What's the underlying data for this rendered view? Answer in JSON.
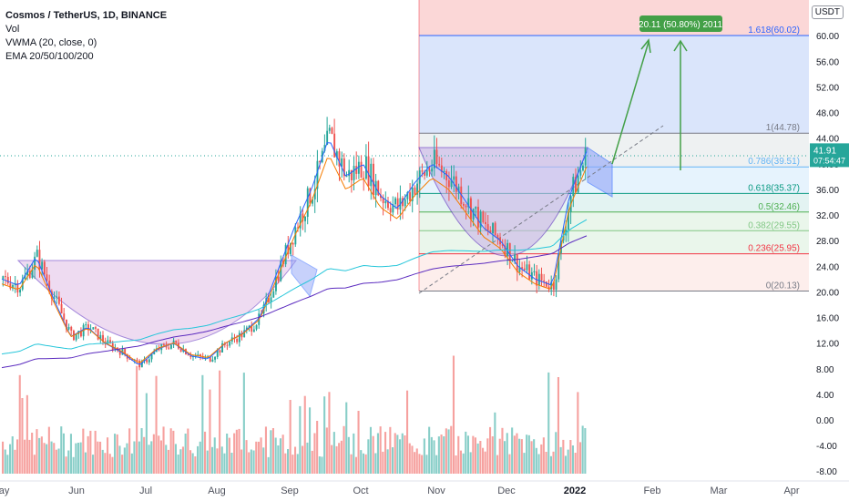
{
  "legend": {
    "title": "Cosmos / TetherUS, 1D, BINANCE",
    "vol": "Vol",
    "vwma": "VWMA (20, close, 0)",
    "ema": "EMA 20/50/100/200"
  },
  "axis_unit": "USDT",
  "price_ticks": [
    "6",
    "60.00",
    "56.00",
    "52.00",
    "48.00",
    "44.00",
    "40.00",
    "36.00",
    "32.00",
    "28.00",
    "24.00",
    "20.00",
    "16.00",
    "12.00",
    "8.00",
    "4.00",
    "0.00",
    "-4.00",
    "-8.00"
  ],
  "months": [
    "May",
    "Jun",
    "Jul",
    "Aug",
    "Sep",
    "Oct",
    "Nov",
    "Dec",
    "2022",
    "Feb",
    "Mar",
    "Apr"
  ],
  "last_price": {
    "value": "41.91",
    "countdown": "07:54:47",
    "color": "#26a69a"
  },
  "projection_label": "20.11 (50.80%) 2011",
  "colors": {
    "up": "#26a69a",
    "down": "#ef5350",
    "ema_blue": "#2962ff",
    "ema_orange": "#f57c00",
    "ema_cyan": "#26c6da",
    "ema_purple": "#5b2bbf",
    "cup_fill": "#e1bee7",
    "target_green": "#43a047"
  },
  "chart_data": {
    "type": "candlestick",
    "title": "Cosmos / TetherUS, 1D, BINANCE",
    "ylim": [
      -9,
      64
    ],
    "x_months": [
      "May",
      "Jun",
      "Jul",
      "Aug",
      "Sep",
      "Oct",
      "Nov",
      "Dec",
      "2022",
      "Feb",
      "Mar",
      "Apr"
    ],
    "close_path": [
      [
        "May",
        22
      ],
      [
        "",
        21
      ],
      [
        "",
        25.5
      ],
      [
        "",
        19
      ],
      [
        "",
        13
      ],
      [
        "Jun",
        14.5
      ],
      [
        "",
        12
      ],
      [
        "",
        10.5
      ],
      [
        "",
        8.5
      ],
      [
        "Jul",
        11
      ],
      [
        "",
        12
      ],
      [
        "",
        10
      ],
      [
        "",
        9.5
      ],
      [
        "Aug",
        12
      ],
      [
        "",
        13.5
      ],
      [
        "",
        16
      ],
      [
        "",
        23
      ],
      [
        "Sep",
        30
      ],
      [
        "",
        36
      ],
      [
        "",
        44
      ],
      [
        "",
        38
      ],
      [
        "Oct",
        40
      ],
      [
        "",
        35
      ],
      [
        "",
        33
      ],
      [
        "",
        37
      ],
      [
        "Nov",
        40
      ],
      [
        "",
        38
      ],
      [
        "",
        34
      ],
      [
        "",
        30
      ],
      [
        "Dec",
        28
      ],
      [
        "",
        24
      ],
      [
        "",
        22
      ],
      [
        "",
        21
      ],
      [
        "2022",
        35
      ],
      [
        "",
        41.91
      ]
    ],
    "fibonacci": [
      {
        "level": "0",
        "price": 20.13,
        "label": "0(20.13)",
        "color": "#787b86"
      },
      {
        "level": "0.236",
        "price": 25.95,
        "label": "0.236(25.95)",
        "color": "#f23645"
      },
      {
        "level": "0.382",
        "price": 29.55,
        "label": "0.382(29.55)",
        "color": "#81c784"
      },
      {
        "level": "0.5",
        "price": 32.46,
        "label": "0.5(32.46)",
        "color": "#4caf50"
      },
      {
        "level": "0.618",
        "price": 35.37,
        "label": "0.618(35.37)",
        "color": "#089981"
      },
      {
        "level": "0.786",
        "price": 39.51,
        "label": "0.786(39.51)",
        "color": "#64b5f6"
      },
      {
        "level": "1",
        "price": 44.78,
        "label": "1(44.78)",
        "color": "#787b86"
      },
      {
        "level": "1.618",
        "price": 60.02,
        "label": "1.618(60.02)",
        "color": "#2962ff"
      }
    ],
    "last_price": 41.91
  }
}
